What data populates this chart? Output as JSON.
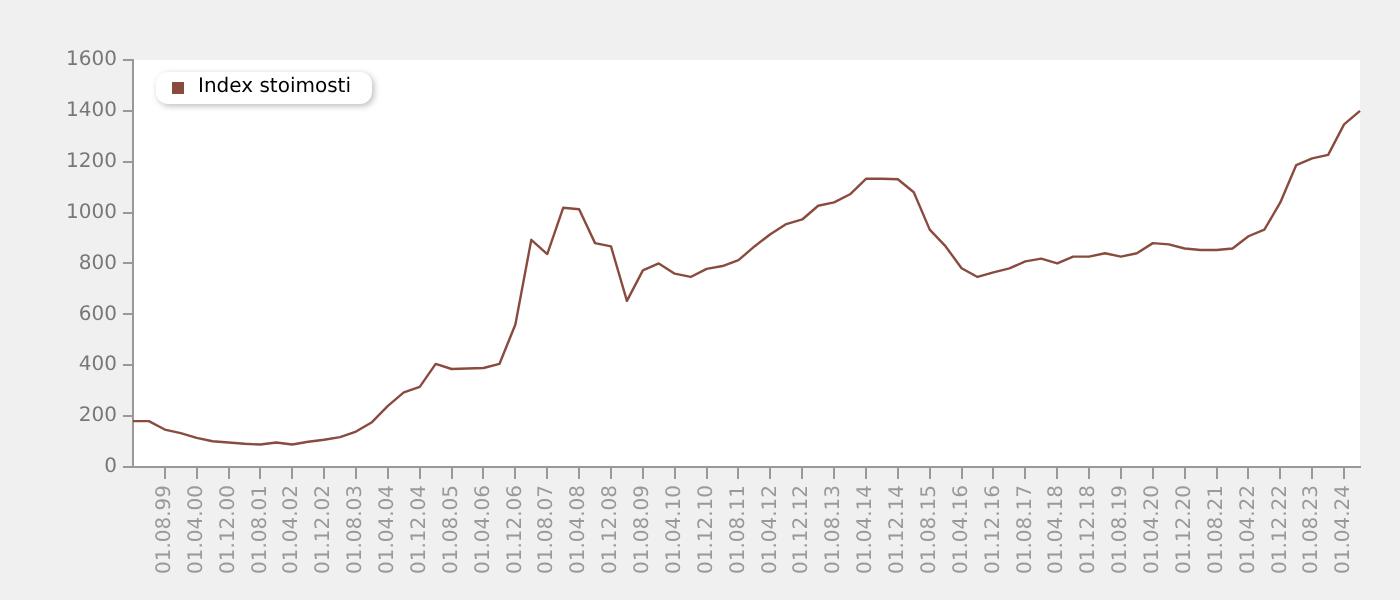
{
  "chart_data": {
    "type": "line",
    "categories": [
      null,
      null,
      "01.08.99",
      null,
      "01.04.00",
      null,
      "01.12.00",
      null,
      "01.08.01",
      null,
      "01.04.02",
      null,
      "01.12.02",
      null,
      "01.08.03",
      null,
      "01.04.04",
      null,
      "01.12.04",
      null,
      "01.08.05",
      null,
      "01.04.06",
      null,
      "01.12.06",
      null,
      "01.08.07",
      null,
      "01.04.08",
      null,
      "01.12.08",
      null,
      "01.08.09",
      null,
      "01.04.10",
      null,
      "01.12.10",
      null,
      "01.08.11",
      null,
      "01.04.12",
      null,
      "01.12.12",
      null,
      "01.08.13",
      null,
      "01.04.14",
      null,
      "01.12.14",
      null,
      "01.08.15",
      null,
      "01.04.16",
      null,
      "01.12.16",
      null,
      "01.08.17",
      null,
      "01.04.18",
      null,
      "01.12.18",
      null,
      "01.08.19",
      null,
      "01.04.20",
      null,
      "01.12.20",
      null,
      "01.08.21",
      null,
      "01.04.22",
      null,
      "01.12.22",
      null,
      "01.08.23",
      null,
      "01.04.24",
      null
    ],
    "series": [
      {
        "name": "Index stoimosti",
        "color": "#8a4b3f",
        "values": [
          180,
          180,
          147,
          133,
          114,
          101,
          96,
          91,
          88,
          96,
          88,
          99,
          107,
          117,
          139,
          176,
          240,
          293,
          315,
          405,
          385,
          387,
          389,
          405,
          560,
          893,
          837,
          1019,
          1013,
          880,
          867,
          653,
          773,
          800,
          760,
          747,
          779,
          790,
          813,
          867,
          915,
          955,
          973,
          1027,
          1040,
          1072,
          1133,
          1133,
          1131,
          1080,
          933,
          867,
          781,
          747,
          765,
          781,
          808,
          819,
          800,
          827,
          827,
          840,
          827,
          840,
          880,
          875,
          859,
          853,
          853,
          859,
          907,
          933,
          1040,
          1187,
          1213,
          1227,
          1347,
          1400
        ]
      }
    ],
    "ylim": [
      0,
      1600
    ],
    "yticks": [
      0,
      200,
      400,
      600,
      800,
      1000,
      1200,
      1400,
      1600
    ],
    "grid": false,
    "legend": "top left",
    "marker": "none",
    "line_style": "solid"
  }
}
